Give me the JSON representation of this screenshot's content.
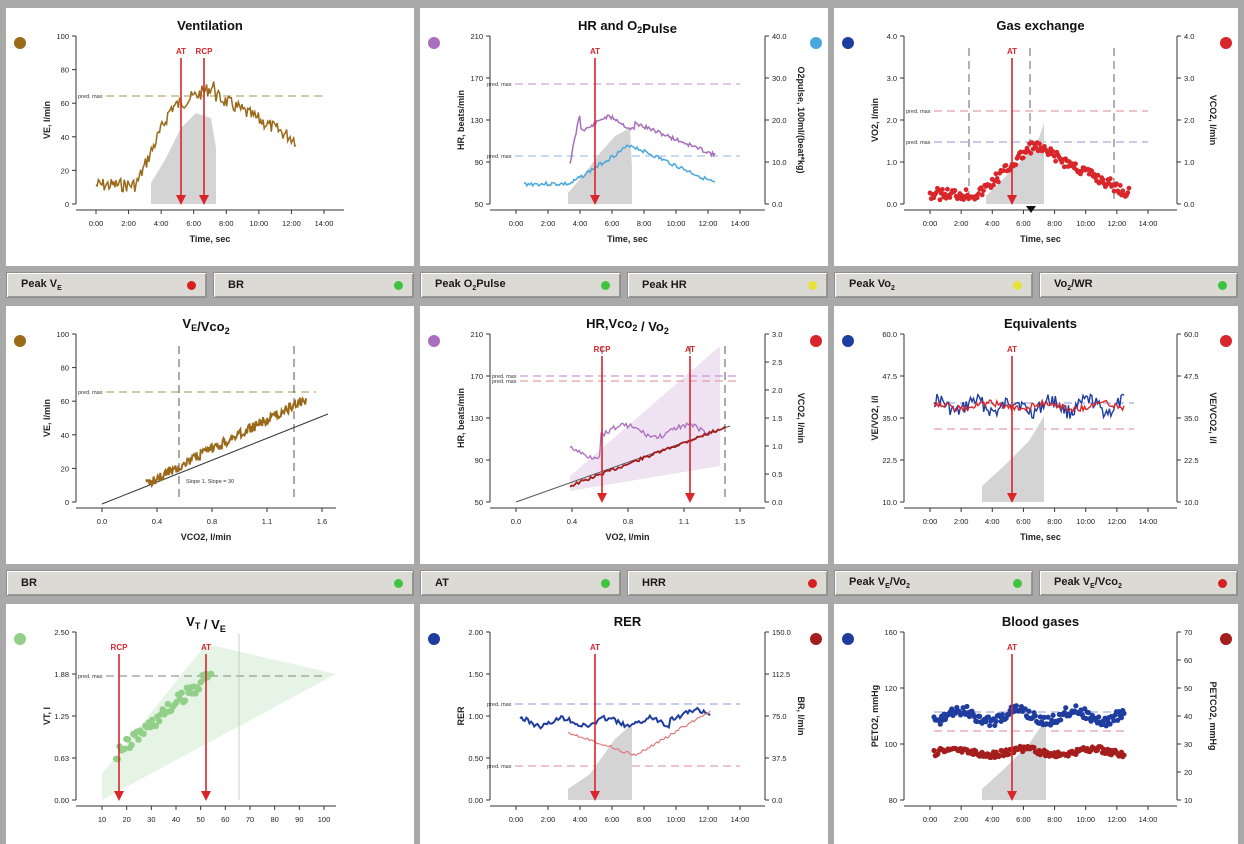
{
  "colors": {
    "brown": "#9a6a1a",
    "purple": "#a86fbd",
    "skyblue": "#4aa7de",
    "blue": "#1f3d9f",
    "red": "#d9262b",
    "darkred": "#a51e1e",
    "green": "#92d08a",
    "yellow": "#e6e23a",
    "dot_green": "#3ec43e",
    "dot_red": "#d61f1f"
  },
  "panels": [
    {
      "id": "ventilation",
      "title": "Ventilation",
      "marker_color": "brown",
      "ylabel": "VE, l/min",
      "yticks": [
        "100",
        "80",
        "60",
        "40",
        "20",
        "0"
      ],
      "xlabel": "Time, sec",
      "xticks": [
        "0:00",
        "2:00",
        "4:00",
        "6:00",
        "8:00",
        "10:00",
        "12:00",
        "14:00"
      ],
      "thresholds": [
        "AT",
        "RCP"
      ],
      "pred_label": "pred. max"
    },
    {
      "id": "hr-o2pulse",
      "title": "HR and O",
      "title_sub": "2",
      "title_tail": "Pulse",
      "marker_color": "purple",
      "marker_right_color": "skyblue",
      "ylabel": "HR, beats/min",
      "yticks": [
        "210",
        "170",
        "130",
        "90",
        "50"
      ],
      "ylabel_right": "O2pulse, 100ml/(beat*kg)",
      "yticks_right": [
        "40.0",
        "30.0",
        "20.0",
        "10.0",
        "0.0"
      ],
      "xlabel": "Time, sec",
      "xticks": [
        "0:00",
        "2:00",
        "4:00",
        "6:00",
        "8:00",
        "10:00",
        "12:00",
        "14:00"
      ],
      "thresholds": [
        "AT"
      ],
      "pred_label": "pred. max"
    },
    {
      "id": "gas-exchange",
      "title": "Gas exchange",
      "marker_color": "blue",
      "marker_right_color": "red",
      "ylabel": "VO2, l/min",
      "yticks": [
        "4.0",
        "3.0",
        "2.0",
        "1.0",
        "0.0"
      ],
      "ylabel_right": "VCO2, l/min",
      "yticks_right": [
        "4.0",
        "3.0",
        "2.0",
        "1.0",
        "0.0"
      ],
      "xlabel": "Time, sec",
      "xticks": [
        "0:00",
        "2:00",
        "4:00",
        "6:00",
        "8:00",
        "10:00",
        "12:00",
        "14:00"
      ],
      "thresholds": [
        "AT"
      ],
      "pred_label": "pred. max"
    },
    {
      "id": "ve-vco2",
      "title": "V",
      "title_sub": "E",
      "title_tail": "/Vco",
      "title_sub2": "2",
      "marker_color": "brown",
      "ylabel": "VE, l/min",
      "yticks": [
        "100",
        "80",
        "60",
        "40",
        "20",
        "0"
      ],
      "xlabel": "VCO2, l/min",
      "xticks": [
        "0.0",
        "0.4",
        "0.8",
        "1.1",
        "1.6"
      ],
      "annotation": "Slope 1. Slope = 30",
      "pred_label": "pred. max"
    },
    {
      "id": "hr-vco2-vo2",
      "title": "HR,Vco",
      "title_sub": "2",
      "title_tail": " / Vo",
      "title_sub2": "2",
      "marker_color": "purple",
      "marker_right_color": "red",
      "ylabel": "HR, beats/min",
      "yticks": [
        "210",
        "170",
        "130",
        "90",
        "50"
      ],
      "ylabel_right": "VCO2, l/min",
      "yticks_right": [
        "3.0",
        "2.5",
        "2.0",
        "1.5",
        "1.0",
        "0.5",
        "0.0"
      ],
      "xlabel": "VO2, l/min",
      "xticks": [
        "0.0",
        "0.4",
        "0.8",
        "1.1",
        "1.5"
      ],
      "thresholds": [
        "RCP",
        "AT"
      ],
      "pred_label": "pred. max"
    },
    {
      "id": "equivalents",
      "title": "Equivalents",
      "marker_color": "blue",
      "marker_right_color": "red",
      "ylabel": "VE/VO2, l/l",
      "yticks": [
        "60.0",
        "47.5",
        "35.0",
        "22.5",
        "10.0"
      ],
      "ylabel_right": "VE/VCO2, l/l",
      "yticks_right": [
        "60.0",
        "47.5",
        "35.0",
        "22.5",
        "10.0"
      ],
      "xlabel": "Time, sec",
      "xticks": [
        "0:00",
        "2:00",
        "4:00",
        "6:00",
        "8:00",
        "10:00",
        "12:00",
        "14:00"
      ],
      "thresholds": [
        "AT"
      ]
    },
    {
      "id": "vt-ve",
      "title": "V",
      "title_sub": "T",
      "title_tail": " / V",
      "title_sub2": "E",
      "marker_color": "green",
      "ylabel": "VT, l",
      "yticks": [
        "2.50",
        "1.88",
        "1.25",
        "0.63",
        "0.00"
      ],
      "xticks": [
        "10",
        "20",
        "30",
        "40",
        "50",
        "60",
        "70",
        "80",
        "90",
        "100"
      ],
      "thresholds": [
        "RCP",
        "AT"
      ],
      "pred_label": "pred. max"
    },
    {
      "id": "rer",
      "title": "RER",
      "marker_color": "blue",
      "marker_right_color": "darkred",
      "ylabel": "RER",
      "yticks": [
        "2.00",
        "1.50",
        "1.00",
        "0.50",
        "0.00"
      ],
      "ylabel_right": "BR, l/min",
      "yticks_right": [
        "150.0",
        "112.5",
        "75.0",
        "37.5",
        "0.0"
      ],
      "xticks": [
        "0:00",
        "2:00",
        "4:00",
        "6:00",
        "8:00",
        "10:00",
        "12:00",
        "14:00"
      ],
      "thresholds": [
        "AT"
      ],
      "pred_label": "pred. max"
    },
    {
      "id": "blood-gases",
      "title": "Blood gases",
      "marker_color": "blue",
      "marker_right_color": "darkred",
      "ylabel": "PETO2, mmHg",
      "yticks": [
        "160",
        "120",
        "100",
        "80"
      ],
      "ylabel_right": "PETCO2, mmHg",
      "yticks_right": [
        "70",
        "60",
        "50",
        "40",
        "30",
        "20",
        "10"
      ],
      "xticks": [
        "0:00",
        "2:00",
        "4:00",
        "6:00",
        "8:00",
        "10:00",
        "12:00",
        "14:00"
      ],
      "thresholds": [
        "AT"
      ]
    }
  ],
  "buttons": [
    [
      {
        "label": "Peak V",
        "sub": "E",
        "dot": "dot_red"
      },
      {
        "label": "BR",
        "sub": "",
        "dot": "dot_green"
      }
    ],
    [
      {
        "label": "Peak O",
        "sub": "2",
        "tail": "Pulse",
        "dot": "dot_green"
      },
      {
        "label": "Peak HR",
        "sub": "",
        "dot": "yellow"
      }
    ],
    [
      {
        "label": "Peak Vo",
        "sub": "2",
        "dot": "yellow"
      },
      {
        "label": "Vo",
        "sub": "2",
        "tail": "/WR",
        "dot": "dot_green"
      }
    ],
    [
      {
        "label": "BR",
        "sub": "",
        "dot": "dot_green"
      }
    ],
    [
      {
        "label": "AT",
        "sub": "",
        "dot": "dot_green"
      },
      {
        "label": "HRR",
        "sub": "",
        "dot": "dot_red"
      }
    ],
    [
      {
        "label": "Peak V",
        "sub": "E",
        "tail": "/Vo",
        "sub2": "2",
        "dot": "dot_green"
      },
      {
        "label": "Peak V",
        "sub": "E",
        "tail": "/Vco",
        "sub2": "2",
        "dot": "dot_red"
      }
    ]
  ]
}
